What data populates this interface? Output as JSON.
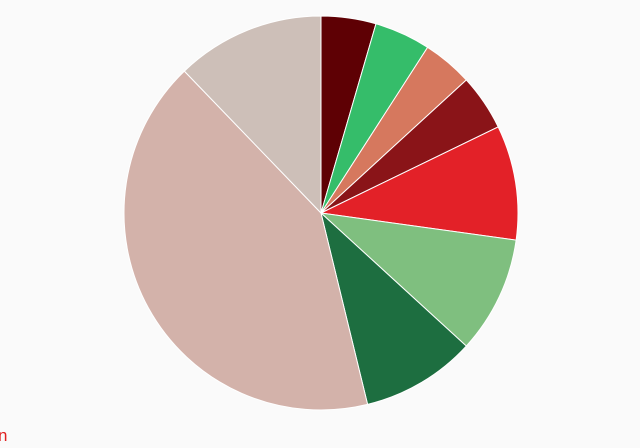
{
  "corner_text": "n",
  "chart_data": {
    "type": "pie",
    "start_angle_deg": 0,
    "direction": "clockwise",
    "slices": [
      {
        "value": 4.5,
        "color": "#5e0004"
      },
      {
        "value": 4.6,
        "color": "#35bd6a"
      },
      {
        "value": 4.1,
        "color": "#d6785e"
      },
      {
        "value": 4.6,
        "color": "#8a1418"
      },
      {
        "value": 9.4,
        "color": "#e32128"
      },
      {
        "value": 9.6,
        "color": "#7fbf7f"
      },
      {
        "value": 9.4,
        "color": "#1d6e40"
      },
      {
        "value": 41.6,
        "color": "#d3b2aa"
      },
      {
        "value": 12.2,
        "color": "#cdbfb8"
      }
    ],
    "edge_color": "#ffffff"
  }
}
